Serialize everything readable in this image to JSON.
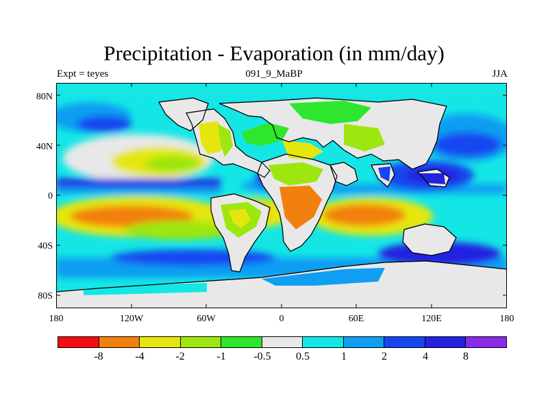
{
  "title": "Precipitation - Evaporation (in mm/day)",
  "subtitle_left": "Expt = teyes",
  "subtitle_center": "091_9_MaBP",
  "subtitle_right": "JJA",
  "y_ticks": [
    "80N",
    "40N",
    "0",
    "40S",
    "80S"
  ],
  "x_ticks": [
    "180",
    "120W",
    "60W",
    "0",
    "60E",
    "120E",
    "180"
  ],
  "legend": {
    "colors": [
      "#f20f0f",
      "#f2800f",
      "#e6e60f",
      "#9ee60f",
      "#2ee62e",
      "#e8e8e8",
      "#14e6e6",
      "#0f9ef2",
      "#1446f0",
      "#2222e0",
      "#8a2be8"
    ],
    "labels": [
      "-8",
      "-4",
      "-2",
      "-1",
      "-0.5",
      "0.5",
      "1",
      "2",
      "4",
      "8"
    ]
  },
  "palette": {
    "ocean_base": "#14e6e6",
    "land_base": "#e8e8e8",
    "coastline": "#000000"
  }
}
